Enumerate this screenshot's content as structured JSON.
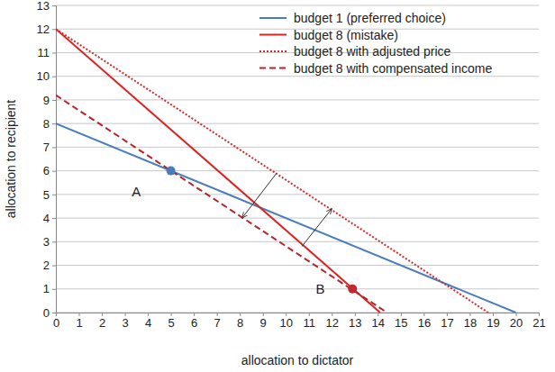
{
  "chart_data": {
    "type": "line",
    "x_label": "allocation to dictator",
    "y_label": "allocation to recipient",
    "xlim": [
      0,
      21
    ],
    "ylim": [
      0,
      13
    ],
    "xticks": [
      0,
      1,
      2,
      3,
      4,
      5,
      6,
      7,
      8,
      9,
      10,
      11,
      12,
      13,
      14,
      15,
      16,
      17,
      18,
      19,
      20,
      21
    ],
    "yticks": [
      0,
      1,
      2,
      3,
      4,
      5,
      6,
      7,
      8,
      9,
      10,
      11,
      12,
      13
    ],
    "grid": true,
    "legend": "top-right",
    "series": [
      {
        "name": "budget 1 (preferred choice)",
        "color": "#4a7ebb",
        "line_style": "solid",
        "x": [
          0,
          20
        ],
        "values": [
          8,
          0
        ]
      },
      {
        "name": "budget 8 (mistake)",
        "color": "#e0201f",
        "line_style": "solid",
        "x": [
          0,
          14.1
        ],
        "values": [
          12,
          0
        ]
      },
      {
        "name": "budget 8 with adjusted price",
        "color": "#d8282a",
        "line_style": "dotted",
        "x": [
          0,
          18.8
        ],
        "values": [
          12,
          0
        ]
      },
      {
        "name": "budget 8 with compensated income",
        "color": "#b8232a",
        "line_style": "dashed",
        "x": [
          0,
          14.4
        ],
        "values": [
          9.2,
          0
        ]
      }
    ],
    "points": [
      {
        "x": 5,
        "y": 6,
        "color": "#4a7ebb",
        "marker": "circle"
      },
      {
        "x": 12.9,
        "y": 1,
        "color": "#c0282d",
        "marker": "circle"
      }
    ],
    "arrows": [
      {
        "x": [
          9.6,
          8.1
        ],
        "y": [
          5.9,
          4.0
        ]
      },
      {
        "x": [
          10.7,
          12.0
        ],
        "y": [
          2.8,
          4.4
        ]
      }
    ],
    "annotations": [
      {
        "text": "A",
        "x": 3.5,
        "y": 4.9
      },
      {
        "text": "B",
        "x": 11.5,
        "y": 0.8
      }
    ]
  }
}
